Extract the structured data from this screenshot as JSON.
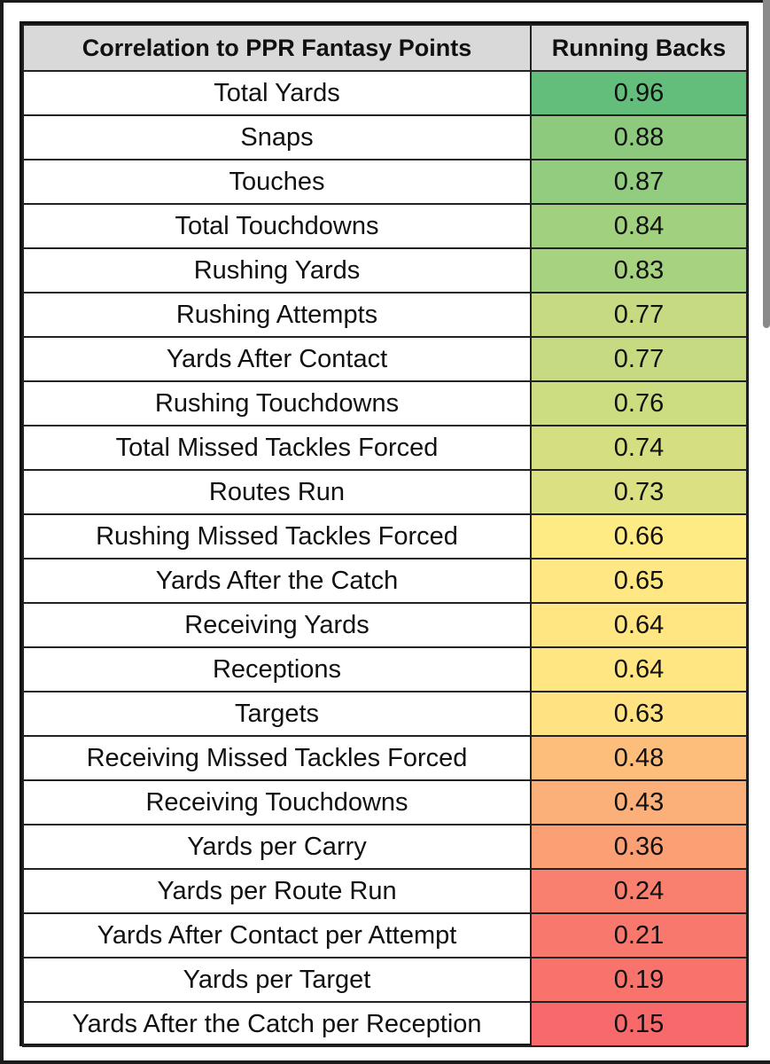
{
  "table": {
    "header": {
      "metric": "Correlation to PPR Fantasy Points",
      "value": "Running Backs"
    }
  },
  "chart_data": {
    "type": "table",
    "title": "Correlation to PPR Fantasy Points",
    "columns": [
      "Correlation to PPR Fantasy Points",
      "Running Backs"
    ],
    "color_scale": {
      "high": "#63be7b",
      "mid": "#ffeb84",
      "low": "#f8696b"
    },
    "rows": [
      {
        "metric": "Total Yards",
        "value": "0.96"
      },
      {
        "metric": "Snaps",
        "value": "0.88"
      },
      {
        "metric": "Touches",
        "value": "0.87"
      },
      {
        "metric": "Total Touchdowns",
        "value": "0.84"
      },
      {
        "metric": "Rushing Yards",
        "value": "0.83"
      },
      {
        "metric": "Rushing Attempts",
        "value": "0.77"
      },
      {
        "metric": "Yards After Contact",
        "value": "0.77"
      },
      {
        "metric": "Rushing Touchdowns",
        "value": "0.76"
      },
      {
        "metric": "Total Missed Tackles Forced",
        "value": "0.74"
      },
      {
        "metric": "Routes Run",
        "value": "0.73"
      },
      {
        "metric": "Rushing Missed Tackles Forced",
        "value": "0.66"
      },
      {
        "metric": "Yards After the Catch",
        "value": "0.65"
      },
      {
        "metric": "Receiving Yards",
        "value": "0.64"
      },
      {
        "metric": "Receptions",
        "value": "0.64"
      },
      {
        "metric": "Targets",
        "value": "0.63"
      },
      {
        "metric": "Receiving Missed Tackles Forced",
        "value": "0.48"
      },
      {
        "metric": "Receiving Touchdowns",
        "value": "0.43"
      },
      {
        "metric": "Yards per Carry",
        "value": "0.36"
      },
      {
        "metric": "Yards per Route Run",
        "value": "0.24"
      },
      {
        "metric": "Yards After Contact per Attempt",
        "value": "0.21"
      },
      {
        "metric": "Yards per Target",
        "value": "0.19"
      },
      {
        "metric": "Yards After the Catch per Reception",
        "value": "0.15"
      }
    ]
  }
}
